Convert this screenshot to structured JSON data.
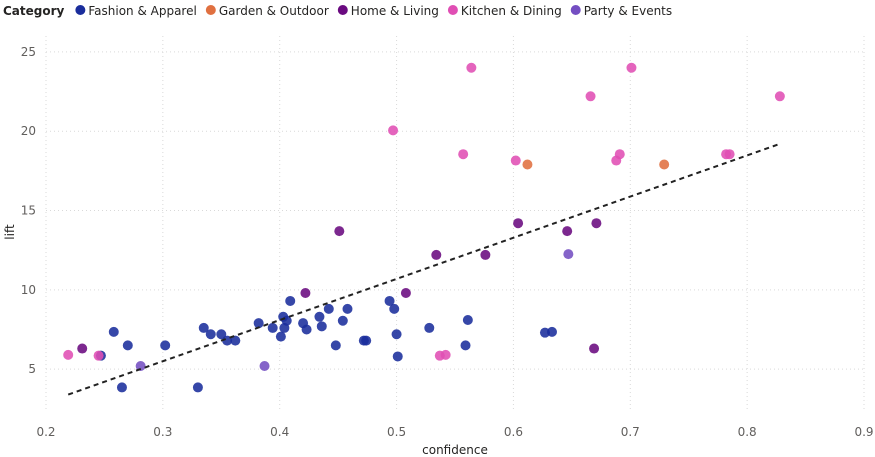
{
  "chart_data": {
    "type": "scatter",
    "xlabel": "confidence",
    "ylabel": "lift",
    "xlim": [
      0.2,
      0.9
    ],
    "ylim": [
      2.3,
      26
    ],
    "xticks": [
      0.2,
      0.3,
      0.4,
      0.5,
      0.6,
      0.7,
      0.8,
      0.9
    ],
    "yticks": [
      5,
      10,
      15,
      20,
      25
    ],
    "grid": true,
    "legend": {
      "title": "Category",
      "position": "top-left"
    },
    "series": [
      {
        "name": "Fashion & Apparel",
        "color": "#1A2D9C",
        "points": [
          [
            0.247,
            5.85
          ],
          [
            0.258,
            7.35
          ],
          [
            0.265,
            3.85
          ],
          [
            0.27,
            6.5
          ],
          [
            0.302,
            6.5
          ],
          [
            0.33,
            3.85
          ],
          [
            0.335,
            7.6
          ],
          [
            0.341,
            7.2
          ],
          [
            0.35,
            7.2
          ],
          [
            0.355,
            6.8
          ],
          [
            0.362,
            6.8
          ],
          [
            0.382,
            7.9
          ],
          [
            0.394,
            7.6
          ],
          [
            0.401,
            7.05
          ],
          [
            0.403,
            8.3
          ],
          [
            0.404,
            7.6
          ],
          [
            0.406,
            8.05
          ],
          [
            0.409,
            9.3
          ],
          [
            0.42,
            7.9
          ],
          [
            0.423,
            7.5
          ],
          [
            0.434,
            8.3
          ],
          [
            0.436,
            7.7
          ],
          [
            0.442,
            8.8
          ],
          [
            0.448,
            6.5
          ],
          [
            0.454,
            8.05
          ],
          [
            0.458,
            8.8
          ],
          [
            0.472,
            6.8
          ],
          [
            0.474,
            6.8
          ],
          [
            0.494,
            9.3
          ],
          [
            0.498,
            8.8
          ],
          [
            0.5,
            7.2
          ],
          [
            0.501,
            5.8
          ],
          [
            0.528,
            7.6
          ],
          [
            0.559,
            6.5
          ],
          [
            0.561,
            8.1
          ],
          [
            0.627,
            7.3
          ],
          [
            0.633,
            7.35
          ]
        ]
      },
      {
        "name": "Garden & Outdoor",
        "color": "#E07040",
        "points": [
          [
            0.612,
            17.9
          ],
          [
            0.729,
            17.9
          ]
        ]
      },
      {
        "name": "Home & Living",
        "color": "#6A0A80",
        "points": [
          [
            0.231,
            6.3
          ],
          [
            0.422,
            9.8
          ],
          [
            0.451,
            13.7
          ],
          [
            0.508,
            9.8
          ],
          [
            0.534,
            12.2
          ],
          [
            0.576,
            12.2
          ],
          [
            0.604,
            14.2
          ],
          [
            0.646,
            13.7
          ],
          [
            0.669,
            6.3
          ],
          [
            0.671,
            14.2
          ]
        ]
      },
      {
        "name": "Kitchen & Dining",
        "color": "#E04EB4",
        "points": [
          [
            0.219,
            5.9
          ],
          [
            0.245,
            5.85
          ],
          [
            0.497,
            20.05
          ],
          [
            0.537,
            5.85
          ],
          [
            0.542,
            5.9
          ],
          [
            0.557,
            18.55
          ],
          [
            0.564,
            24.0
          ],
          [
            0.602,
            18.15
          ],
          [
            0.666,
            22.2
          ],
          [
            0.688,
            18.15
          ],
          [
            0.691,
            18.55
          ],
          [
            0.701,
            24.0
          ],
          [
            0.782,
            18.55
          ],
          [
            0.785,
            18.55
          ],
          [
            0.828,
            22.2
          ]
        ]
      },
      {
        "name": "Party & Events",
        "color": "#744EC2",
        "points": [
          [
            0.281,
            5.2
          ],
          [
            0.387,
            5.2
          ],
          [
            0.647,
            12.25
          ]
        ]
      }
    ],
    "trendline": {
      "style": "dashed",
      "color": "#222222",
      "points": [
        [
          0.219,
          3.4
        ],
        [
          0.828,
          19.2
        ]
      ]
    }
  }
}
